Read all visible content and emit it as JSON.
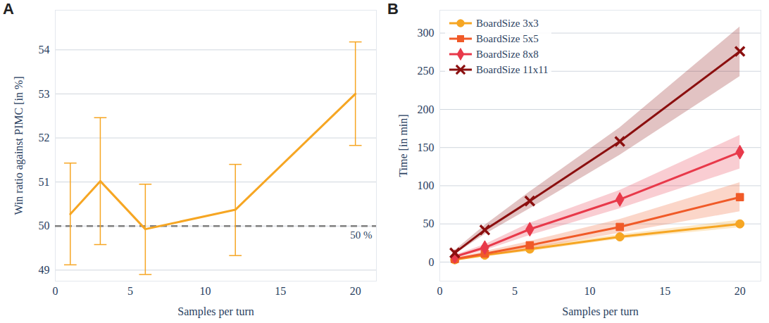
{
  "chart_data": [
    {
      "title": "A",
      "type": "line",
      "x_label": "Samples per turn",
      "y_label": "Win ratio against PIMC [in %]",
      "x": [
        1,
        3,
        6,
        12,
        20
      ],
      "values": [
        50.27,
        51.02,
        49.93,
        50.37,
        53.0
      ],
      "error_low": [
        49.12,
        49.58,
        48.9,
        49.33,
        51.83
      ],
      "error_high": [
        51.43,
        52.46,
        50.95,
        51.4,
        54.18
      ],
      "color": "#f6a623",
      "xlim": [
        0,
        21.4
      ],
      "xticks": [
        0,
        5,
        10,
        15,
        20
      ],
      "ylim": [
        48.75,
        54.9
      ],
      "yticks": [
        49,
        50,
        51,
        52,
        53,
        54
      ],
      "grid": true,
      "hline": {
        "value": 50,
        "label": "50 %",
        "line_style": "dashed",
        "color": "#808080"
      }
    },
    {
      "title": "B",
      "type": "line",
      "x_label": "Samples per turn",
      "y_label": "Time [in min]",
      "x": [
        1,
        3,
        6,
        12,
        20
      ],
      "series": [
        {
          "name": "BoardSize 3x3",
          "color": "#f6a623",
          "marker": "circle",
          "values": [
            3,
            9,
            17,
            33,
            50
          ],
          "band_low": [
            2,
            7,
            14,
            30,
            45
          ],
          "band_high": [
            4,
            11,
            20,
            36,
            55
          ]
        },
        {
          "name": "BoardSize 5x5",
          "color": "#f05a28",
          "marker": "square",
          "values": [
            4,
            11,
            22,
            46,
            85
          ],
          "band_low": [
            2,
            8,
            17,
            38,
            66
          ],
          "band_high": [
            5,
            14,
            27,
            56,
            104
          ]
        },
        {
          "name": "BoardSize 8x8",
          "color": "#e8394a",
          "marker": "diamond",
          "values": [
            7,
            19,
            43,
            82,
            144
          ],
          "band_low": [
            5,
            15,
            35,
            70,
            122
          ],
          "band_high": [
            9,
            23,
            51,
            94,
            166
          ]
        },
        {
          "name": "BoardSize 11x11",
          "color": "#8b0f0f",
          "marker": "x",
          "values": [
            12,
            42,
            80,
            158,
            276
          ],
          "band_low": [
            10,
            36,
            70,
            140,
            243
          ],
          "band_high": [
            15,
            48,
            92,
            176,
            308
          ]
        }
      ],
      "xlim": [
        0,
        21.4
      ],
      "xticks": [
        0,
        5,
        10,
        15,
        20
      ],
      "ylim": [
        -25,
        330
      ],
      "yticks": [
        0,
        50,
        100,
        150,
        200,
        250,
        300
      ],
      "grid": true,
      "legend": "top-left"
    }
  ]
}
